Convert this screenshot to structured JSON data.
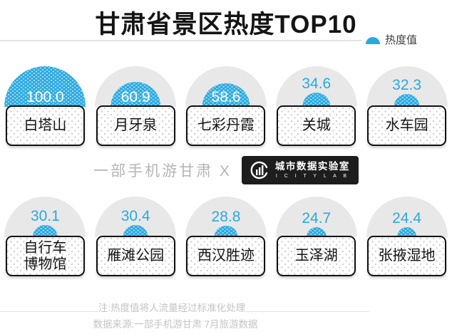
{
  "title": "甘肃省景区热度TOP10",
  "legend": {
    "label": "热度值"
  },
  "colors": {
    "heat_blue": "#29a9e0",
    "gray_mound": "#e8e8e8",
    "value_blue": "#2aa9e0",
    "value_white": "#ffffff"
  },
  "chart_data": {
    "type": "bar",
    "title": "甘肃省景区热度TOP10",
    "legend": "热度值",
    "max_value": 100,
    "categories": [
      "白塔山",
      "月牙泉",
      "七彩丹霞",
      "关城",
      "水车园",
      "自行车\n博物馆",
      "雁滩公园",
      "西汉胜迹",
      "玉泽湖",
      "张掖湿地"
    ],
    "values": [
      100.0,
      60.9,
      58.6,
      34.6,
      32.3,
      30.1,
      30.4,
      28.8,
      24.7,
      24.4
    ],
    "layout_rows": [
      [
        "白塔山",
        "月牙泉",
        "七彩丹霞",
        "关城",
        "水车园"
      ],
      [
        "自行车博物馆",
        "雁滩公园",
        "西汉胜迹",
        "玉泽湖",
        "张掖湿地"
      ]
    ],
    "note": "注:热度值将人流量经过标准化处理"
  },
  "midline": {
    "text": "一部手机游甘肃 X",
    "logo_cn": "城市数据实验室",
    "logo_en": "I C I T Y L A B"
  },
  "footer": {
    "note": "注:热度值将人流量经过标准化处理",
    "source": "数据来源:一部手机游甘肃 7月旅游数据"
  }
}
